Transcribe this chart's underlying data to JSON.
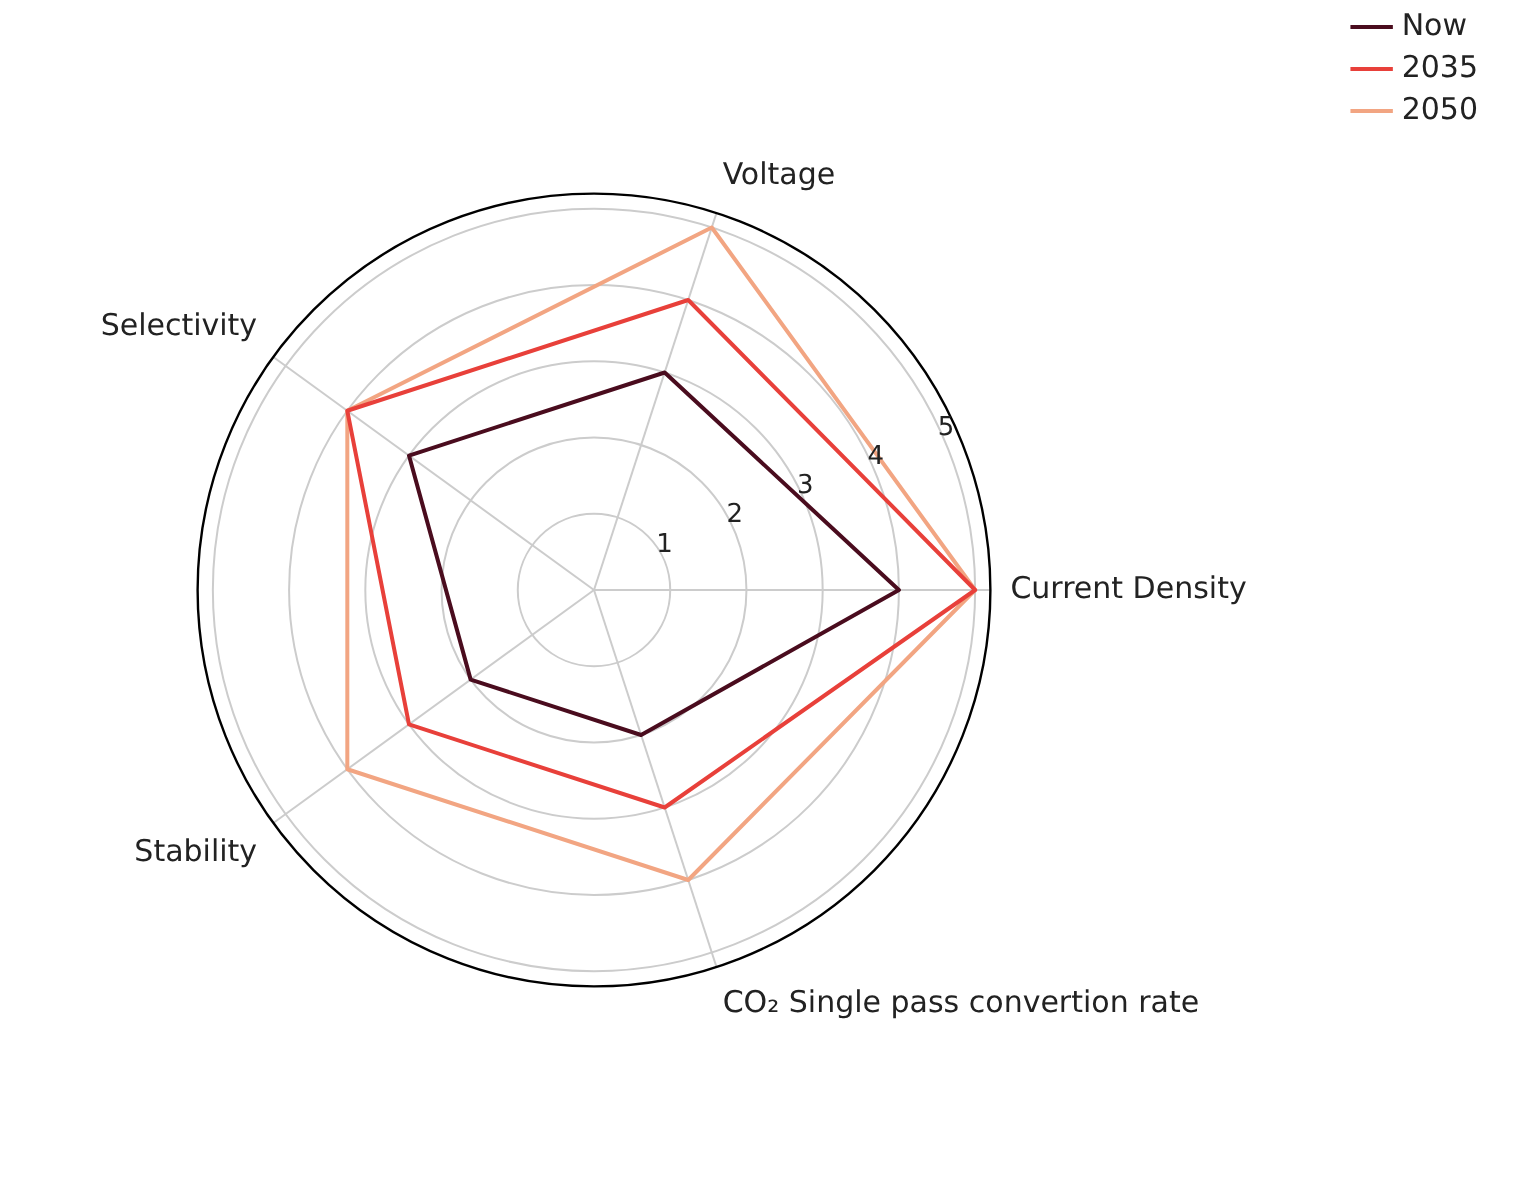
{
  "chart_data": {
    "type": "radar",
    "categories": [
      "Voltage",
      "Current Density",
      "CO₂ Single pass convertion rate",
      "Stability",
      "Selectivity"
    ],
    "series": [
      {
        "name": "Now",
        "color": "#4a0c1e",
        "values": [
          3,
          4,
          2,
          2,
          3
        ]
      },
      {
        "name": "2035",
        "color": "#e8403a",
        "values": [
          4,
          5,
          3,
          3,
          4
        ]
      },
      {
        "name": "2050",
        "color": "#f2a582",
        "values": [
          5,
          5,
          4,
          4,
          4
        ]
      }
    ],
    "ylim": [
      0,
      5.2
    ],
    "yticks": [
      1,
      2,
      3,
      4,
      5
    ],
    "grid": true,
    "legend": "top right",
    "marker": "none",
    "line_style": "solid"
  }
}
